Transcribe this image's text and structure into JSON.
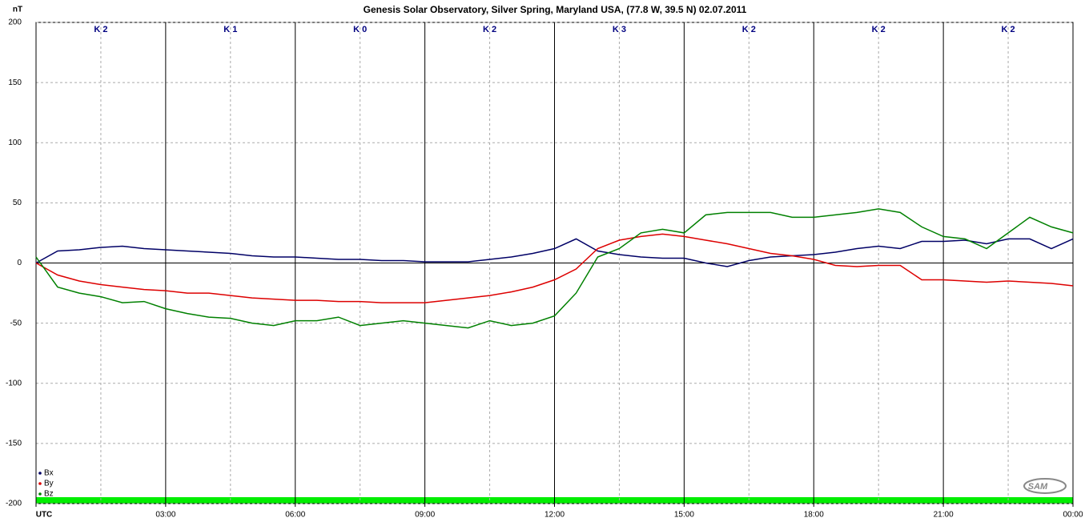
{
  "chart_data": {
    "type": "line",
    "title": "Genesis Solar Observatory, Silver Spring, Maryland USA, (77.8 W, 39.5 N)  02.07.2011",
    "ylabel": "nT",
    "k_index": [
      "K 2",
      "K 1",
      "K 0",
      "K 2",
      "K 3",
      "K 2",
      "K 2",
      "K 2"
    ],
    "logo": "SAM",
    "x": [
      0,
      0.5,
      1,
      1.5,
      2,
      2.5,
      3,
      3.5,
      4,
      4.5,
      5,
      5.5,
      6,
      6.5,
      7,
      7.5,
      8,
      8.5,
      9,
      9.5,
      10,
      10.5,
      11,
      11.5,
      12,
      12.5,
      13,
      13.5,
      14,
      14.5,
      15,
      15.5,
      16,
      16.5,
      17,
      17.5,
      18,
      18.5,
      19,
      19.5,
      20,
      20.5,
      21,
      21.5,
      22,
      22.5,
      23,
      23.5,
      24
    ],
    "series": [
      {
        "name": "Bx",
        "color": "#000066",
        "values": [
          0,
          10,
          11,
          13,
          14,
          12,
          11,
          10,
          9,
          8,
          6,
          5,
          5,
          4,
          3,
          3,
          2,
          2,
          1,
          1,
          1,
          3,
          5,
          8,
          12,
          20,
          10,
          7,
          5,
          4,
          4,
          0,
          -3,
          2,
          5,
          6,
          7,
          9,
          12,
          14,
          12,
          18,
          18,
          19,
          16,
          20,
          20,
          12,
          20
        ]
      },
      {
        "name": "By",
        "color": "#dd0000",
        "values": [
          0,
          -10,
          -15,
          -18,
          -20,
          -22,
          -23,
          -25,
          -25,
          -27,
          -29,
          -30,
          -31,
          -31,
          -32,
          -32,
          -33,
          -33,
          -33,
          -31,
          -29,
          -27,
          -24,
          -20,
          -14,
          -5,
          12,
          19,
          22,
          24,
          22,
          19,
          16,
          12,
          8,
          6,
          3,
          -2,
          -3,
          -2,
          -2,
          -14,
          -14,
          -15,
          -16,
          -15,
          -16,
          -17,
          -19
        ]
      },
      {
        "name": "Bz",
        "color": "#008000",
        "values": [
          5,
          -20,
          -25,
          -28,
          -33,
          -32,
          -38,
          -42,
          -45,
          -46,
          -50,
          -52,
          -48,
          -48,
          -45,
          -52,
          -50,
          -48,
          -50,
          -52,
          -54,
          -48,
          -52,
          -50,
          -44,
          -25,
          5,
          12,
          25,
          28,
          25,
          40,
          42,
          42,
          42,
          38,
          38,
          40,
          42,
          45,
          42,
          30,
          22,
          20,
          12,
          25,
          38,
          30,
          25
        ]
      }
    ],
    "xlim": [
      0,
      24
    ],
    "xticks": [
      {
        "value": 0,
        "label": "UTC"
      },
      {
        "value": 3,
        "label": "03:00"
      },
      {
        "value": 6,
        "label": "06:00"
      },
      {
        "value": 9,
        "label": "09:00"
      },
      {
        "value": 12,
        "label": "12:00"
      },
      {
        "value": 15,
        "label": "15:00"
      },
      {
        "value": 18,
        "label": "18:00"
      },
      {
        "value": 21,
        "label": "21:00"
      },
      {
        "value": 24,
        "label": "00:00"
      }
    ],
    "xminor": [
      1.5,
      4.5,
      7.5,
      10.5,
      13.5,
      16.5,
      19.5,
      22.5
    ],
    "ylim": [
      -200,
      200
    ],
    "yticks": [
      -200,
      -150,
      -100,
      -50,
      0,
      50,
      100,
      150,
      200
    ],
    "grid": true,
    "legend": "lower left"
  }
}
